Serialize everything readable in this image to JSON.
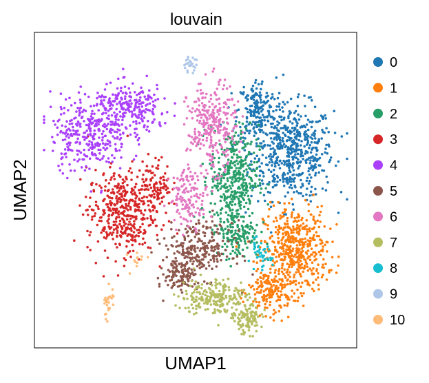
{
  "chart_data": {
    "type": "scatter",
    "title": "louvain",
    "xlabel": "UMAP1",
    "ylabel": "UMAP2",
    "xticks": false,
    "yticks": false,
    "grid": false,
    "legend_position": "right",
    "xlim": [
      0,
      100
    ],
    "ylim": [
      0,
      100
    ],
    "series": [
      {
        "name": "0",
        "color": "#1f77b4",
        "points_approx": 750,
        "clusters": [
          {
            "cx": 80,
            "cy": 62,
            "sx": 8.5,
            "sy": 10,
            "n": 560
          },
          {
            "cx": 69,
            "cy": 75,
            "sx": 4,
            "sy": 7,
            "n": 190
          }
        ]
      },
      {
        "name": "1",
        "color": "#ff7f0e",
        "points_approx": 650,
        "clusters": [
          {
            "cx": 81,
            "cy": 31,
            "sx": 6.5,
            "sy": 9,
            "n": 480
          },
          {
            "cx": 73,
            "cy": 18,
            "sx": 4.5,
            "sy": 5,
            "n": 170
          }
        ]
      },
      {
        "name": "2",
        "color": "#279e68",
        "points_approx": 520,
        "clusters": [
          {
            "cx": 62,
            "cy": 54,
            "sx": 5,
            "sy": 11,
            "n": 380
          },
          {
            "cx": 63,
            "cy": 36,
            "sx": 4.5,
            "sy": 5,
            "n": 140
          }
        ]
      },
      {
        "name": "3",
        "color": "#d62728",
        "points_approx": 520,
        "clusters": [
          {
            "cx": 27,
            "cy": 43,
            "sx": 7,
            "sy": 9,
            "n": 420
          },
          {
            "cx": 38,
            "cy": 52,
            "sx": 3,
            "sy": 5,
            "n": 100
          }
        ]
      },
      {
        "name": "4",
        "color": "#aa40fc",
        "points_approx": 560,
        "clusters": [
          {
            "cx": 17,
            "cy": 68,
            "sx": 8,
            "sy": 8,
            "n": 320
          },
          {
            "cx": 30,
            "cy": 76,
            "sx": 8,
            "sy": 5,
            "n": 240
          }
        ]
      },
      {
        "name": "5",
        "color": "#8c564b",
        "points_approx": 360,
        "clusters": [
          {
            "cx": 51,
            "cy": 31,
            "sx": 7,
            "sy": 6,
            "n": 260
          },
          {
            "cx": 45,
            "cy": 23,
            "sx": 3,
            "sy": 4,
            "n": 100
          }
        ]
      },
      {
        "name": "6",
        "color": "#e377c2",
        "points_approx": 440,
        "clusters": [
          {
            "cx": 55,
            "cy": 70,
            "sx": 5,
            "sy": 9,
            "n": 300
          },
          {
            "cx": 48,
            "cy": 48,
            "sx": 4,
            "sy": 6,
            "n": 140
          }
        ]
      },
      {
        "name": "7",
        "color": "#b5bd61",
        "points_approx": 330,
        "clusters": [
          {
            "cx": 56,
            "cy": 16,
            "sx": 7,
            "sy": 4,
            "n": 230
          },
          {
            "cx": 66,
            "cy": 9,
            "sx": 3,
            "sy": 3,
            "n": 100
          }
        ]
      },
      {
        "name": "8",
        "color": "#17becf",
        "points_approx": 40,
        "clusters": [
          {
            "cx": 70,
            "cy": 29,
            "sx": 2.5,
            "sy": 3,
            "n": 40
          }
        ]
      },
      {
        "name": "9",
        "color": "#aec7e8",
        "points_approx": 25,
        "clusters": [
          {
            "cx": 48,
            "cy": 90,
            "sx": 1.5,
            "sy": 1.5,
            "n": 25
          }
        ]
      },
      {
        "name": "10",
        "color": "#ffbb78",
        "points_approx": 40,
        "clusters": [
          {
            "cx": 23,
            "cy": 14,
            "sx": 1.2,
            "sy": 4,
            "n": 28
          },
          {
            "cx": 32,
            "cy": 29,
            "sx": 2,
            "sy": 3,
            "n": 12
          }
        ]
      }
    ],
    "legend": {
      "labels": [
        "0",
        "1",
        "2",
        "3",
        "4",
        "5",
        "6",
        "7",
        "8",
        "9",
        "10"
      ],
      "colors": [
        "#1f77b4",
        "#ff7f0e",
        "#279e68",
        "#d62728",
        "#aa40fc",
        "#8c564b",
        "#e377c2",
        "#b5bd61",
        "#17becf",
        "#aec7e8",
        "#ffbb78"
      ]
    }
  }
}
